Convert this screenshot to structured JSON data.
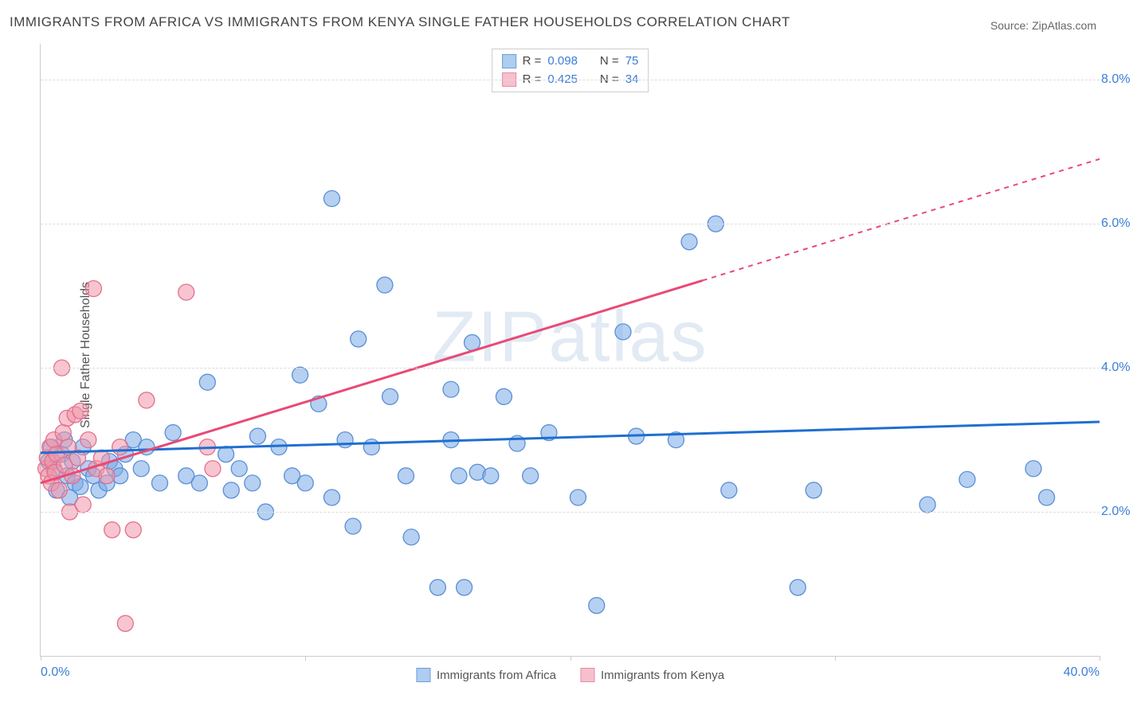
{
  "title": "IMMIGRANTS FROM AFRICA VS IMMIGRANTS FROM KENYA SINGLE FATHER HOUSEHOLDS CORRELATION CHART",
  "source_label": "Source: ZipAtlas.com",
  "ylabel": "Single Father Households",
  "watermark": "ZIPatlas",
  "chart": {
    "type": "scatter",
    "background_color": "#ffffff",
    "grid_color": "#dddddd",
    "axis_color": "#cccccc",
    "tick_label_color": "#3b7dd8",
    "tick_fontsize": 16,
    "title_fontsize": 17,
    "title_color": "#444444",
    "xlim": [
      0,
      40
    ],
    "ylim": [
      0,
      8.5
    ],
    "ygrid_values": [
      2,
      4,
      6,
      8
    ],
    "ytick_labels": [
      "2.0%",
      "4.0%",
      "6.0%",
      "8.0%"
    ],
    "xtick_min_label": "0.0%",
    "xtick_max_label": "40.0%",
    "xtick_marks": [
      0,
      10,
      20,
      30,
      40
    ],
    "marker_radius": 10,
    "marker_opacity": 0.55,
    "line_width": 3,
    "stats": [
      {
        "r_label": "R =",
        "r": "0.098",
        "n_label": "N =",
        "n": "75"
      },
      {
        "r_label": "R =",
        "r": "0.425",
        "n_label": "N =",
        "n": "34"
      }
    ],
    "series": [
      {
        "name": "Immigrants from Africa",
        "fill": "rgba(120,170,230,0.55)",
        "stroke": "#5b8fd6",
        "line_color": "#1f6fd0",
        "swatch_fill": "#aecdf0",
        "swatch_border": "#6a9edb",
        "trend": {
          "x1": 0,
          "y1": 2.82,
          "x2": 40,
          "y2": 3.25,
          "dashed_from_x": null
        },
        "points": [
          [
            0.3,
            2.7
          ],
          [
            0.4,
            2.9
          ],
          [
            0.5,
            2.6
          ],
          [
            0.6,
            2.3
          ],
          [
            0.8,
            2.8
          ],
          [
            0.9,
            3.0
          ],
          [
            1.0,
            2.5
          ],
          [
            1.1,
            2.2
          ],
          [
            1.2,
            2.7
          ],
          [
            1.3,
            2.4
          ],
          [
            1.5,
            2.35
          ],
          [
            1.6,
            2.9
          ],
          [
            1.8,
            2.6
          ],
          [
            2.0,
            2.5
          ],
          [
            2.2,
            2.3
          ],
          [
            2.5,
            2.4
          ],
          [
            2.6,
            2.7
          ],
          [
            2.8,
            2.6
          ],
          [
            3.0,
            2.5
          ],
          [
            3.2,
            2.8
          ],
          [
            3.5,
            3.0
          ],
          [
            3.8,
            2.6
          ],
          [
            4.0,
            2.9
          ],
          [
            4.5,
            2.4
          ],
          [
            5.0,
            3.1
          ],
          [
            5.5,
            2.5
          ],
          [
            6.0,
            2.4
          ],
          [
            6.3,
            3.8
          ],
          [
            7.0,
            2.8
          ],
          [
            7.2,
            2.3
          ],
          [
            7.5,
            2.6
          ],
          [
            8.0,
            2.4
          ],
          [
            8.2,
            3.05
          ],
          [
            8.5,
            2.0
          ],
          [
            9.0,
            2.9
          ],
          [
            9.5,
            2.5
          ],
          [
            9.8,
            3.9
          ],
          [
            10.0,
            2.4
          ],
          [
            10.5,
            3.5
          ],
          [
            11.0,
            2.2
          ],
          [
            11.0,
            6.35
          ],
          [
            11.5,
            3.0
          ],
          [
            11.8,
            1.8
          ],
          [
            12.0,
            4.4
          ],
          [
            12.5,
            2.9
          ],
          [
            13.0,
            5.15
          ],
          [
            13.2,
            3.6
          ],
          [
            13.8,
            2.5
          ],
          [
            14.0,
            1.65
          ],
          [
            15.0,
            0.95
          ],
          [
            15.5,
            3.0
          ],
          [
            15.5,
            3.7
          ],
          [
            16.0,
            0.95
          ],
          [
            16.3,
            4.35
          ],
          [
            16.5,
            2.55
          ],
          [
            17.0,
            2.5
          ],
          [
            17.5,
            3.6
          ],
          [
            18.0,
            2.95
          ],
          [
            18.5,
            2.5
          ],
          [
            19.2,
            3.1
          ],
          [
            20.3,
            2.2
          ],
          [
            21.0,
            0.7
          ],
          [
            22.0,
            4.5
          ],
          [
            22.5,
            3.05
          ],
          [
            24.0,
            3.0
          ],
          [
            24.5,
            5.75
          ],
          [
            25.5,
            6.0
          ],
          [
            26.0,
            2.3
          ],
          [
            28.6,
            0.95
          ],
          [
            29.2,
            2.3
          ],
          [
            33.5,
            2.1
          ],
          [
            35.0,
            2.45
          ],
          [
            37.5,
            2.6
          ],
          [
            38.0,
            2.2
          ],
          [
            15.8,
            2.5
          ]
        ]
      },
      {
        "name": "Immigrants from Kenya",
        "fill": "rgba(240,150,170,0.55)",
        "stroke": "#e46f8d",
        "line_color": "#e84a76",
        "swatch_fill": "#f6c0cd",
        "swatch_border": "#e98ba3",
        "trend": {
          "x1": 0,
          "y1": 2.4,
          "x2": 40,
          "y2": 6.9,
          "dashed_from_x": 25
        },
        "points": [
          [
            0.2,
            2.6
          ],
          [
            0.25,
            2.75
          ],
          [
            0.3,
            2.5
          ],
          [
            0.35,
            2.9
          ],
          [
            0.4,
            2.4
          ],
          [
            0.45,
            2.7
          ],
          [
            0.5,
            3.0
          ],
          [
            0.55,
            2.55
          ],
          [
            0.6,
            2.8
          ],
          [
            0.7,
            2.3
          ],
          [
            0.8,
            4.0
          ],
          [
            0.85,
            3.1
          ],
          [
            0.9,
            2.65
          ],
          [
            1.0,
            3.3
          ],
          [
            1.05,
            2.9
          ],
          [
            1.1,
            2.0
          ],
          [
            1.2,
            2.5
          ],
          [
            1.3,
            3.35
          ],
          [
            1.4,
            2.75
          ],
          [
            1.5,
            3.4
          ],
          [
            1.6,
            2.1
          ],
          [
            1.8,
            3.0
          ],
          [
            2.0,
            5.1
          ],
          [
            2.1,
            2.6
          ],
          [
            2.3,
            2.75
          ],
          [
            2.5,
            2.5
          ],
          [
            2.7,
            1.75
          ],
          [
            3.0,
            2.9
          ],
          [
            3.2,
            0.45
          ],
          [
            3.5,
            1.75
          ],
          [
            4.0,
            3.55
          ],
          [
            5.5,
            5.05
          ],
          [
            6.3,
            2.9
          ],
          [
            6.5,
            2.6
          ]
        ]
      }
    ]
  }
}
